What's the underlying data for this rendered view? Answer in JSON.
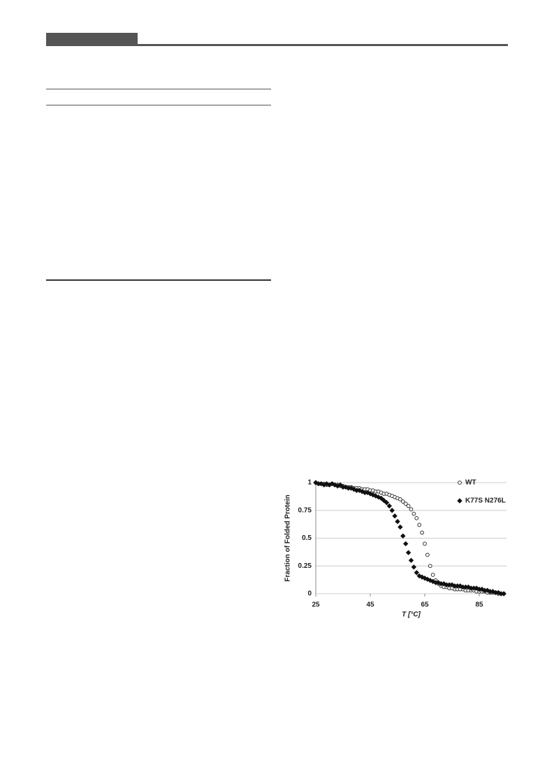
{
  "chart_data": {
    "type": "scatter",
    "xlabel": "T [°C]",
    "ylabel": "Fraction of Folded Protein",
    "x": [
      25,
      26,
      27,
      28,
      29,
      30,
      31,
      32,
      33,
      34,
      35,
      36,
      37,
      38,
      39,
      40,
      41,
      42,
      43,
      44,
      45,
      46,
      47,
      48,
      49,
      50,
      51,
      52,
      53,
      54,
      55,
      56,
      57,
      58,
      59,
      60,
      61,
      62,
      63,
      64,
      65,
      66,
      67,
      68,
      69,
      70,
      71,
      72,
      73,
      74,
      75,
      76,
      77,
      78,
      79,
      80,
      81,
      82,
      83,
      84,
      85,
      86,
      87,
      88,
      89,
      90,
      91,
      92,
      93,
      94
    ],
    "series": [
      {
        "name": "WT",
        "color": "#333333",
        "marker": "circle",
        "filled": false,
        "values": [
          1,
          0.99,
          0.99,
          0.99,
          0.98,
          0.98,
          0.99,
          0.98,
          0.98,
          0.97,
          0.97,
          0.96,
          0.96,
          0.96,
          0.95,
          0.95,
          0.95,
          0.94,
          0.94,
          0.94,
          0.93,
          0.93,
          0.92,
          0.92,
          0.91,
          0.9,
          0.9,
          0.89,
          0.88,
          0.87,
          0.86,
          0.85,
          0.83,
          0.81,
          0.79,
          0.76,
          0.72,
          0.68,
          0.62,
          0.55,
          0.45,
          0.35,
          0.25,
          0.17,
          0.12,
          0.09,
          0.07,
          0.06,
          0.06,
          0.05,
          0.05,
          0.04,
          0.04,
          0.04,
          0.04,
          0.03,
          0.03,
          0.03,
          0.03,
          0.02,
          0.02,
          0.02,
          0.02,
          0.01,
          0.01,
          0.01,
          0.01,
          0,
          0,
          0
        ]
      },
      {
        "name": "K77S N276L",
        "color": "#111111",
        "marker": "diamond",
        "filled": true,
        "values": [
          1,
          0.99,
          0.99,
          0.98,
          0.99,
          0.98,
          0.99,
          0.98,
          0.97,
          0.98,
          0.96,
          0.96,
          0.95,
          0.95,
          0.94,
          0.93,
          0.93,
          0.92,
          0.91,
          0.91,
          0.9,
          0.89,
          0.88,
          0.87,
          0.86,
          0.84,
          0.82,
          0.79,
          0.75,
          0.7,
          0.65,
          0.6,
          0.52,
          0.45,
          0.37,
          0.3,
          0.24,
          0.19,
          0.16,
          0.15,
          0.14,
          0.13,
          0.12,
          0.11,
          0.1,
          0.1,
          0.09,
          0.09,
          0.08,
          0.08,
          0.08,
          0.07,
          0.07,
          0.07,
          0.06,
          0.06,
          0.06,
          0.05,
          0.05,
          0.05,
          0.04,
          0.04,
          0.03,
          0.03,
          0.02,
          0.02,
          0.01,
          0.01,
          0,
          0
        ]
      }
    ],
    "xlim": [
      25,
      95
    ],
    "xticks": [
      25,
      45,
      65,
      85
    ],
    "ylim": [
      0,
      1
    ],
    "yticks": [
      0,
      0.25,
      0.5,
      0.75,
      1
    ],
    "grid": true,
    "legend": "upper right"
  }
}
